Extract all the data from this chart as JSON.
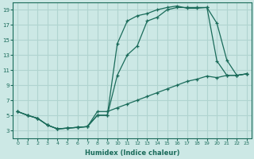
{
  "xlabel": "Humidex (Indice chaleur)",
  "background_color": "#cce8e5",
  "grid_color": "#b0d4d0",
  "line_color": "#1a6b5a",
  "xlim": [
    -0.5,
    23.5
  ],
  "ylim": [
    2,
    20
  ],
  "xticks": [
    0,
    1,
    2,
    3,
    4,
    5,
    6,
    7,
    8,
    9,
    10,
    11,
    12,
    13,
    14,
    15,
    16,
    17,
    18,
    19,
    20,
    21,
    22,
    23
  ],
  "yticks": [
    3,
    5,
    7,
    9,
    11,
    13,
    15,
    17,
    19
  ],
  "line1_x": [
    0,
    1,
    2,
    3,
    4,
    5,
    6,
    7,
    8,
    9,
    10,
    11,
    12,
    13,
    14,
    15,
    16,
    17,
    18,
    19,
    20,
    21,
    22,
    23
  ],
  "line1_y": [
    5.5,
    5.0,
    4.6,
    3.7,
    3.2,
    3.3,
    3.4,
    3.5,
    5.0,
    5.0,
    14.5,
    17.5,
    18.2,
    18.5,
    19.0,
    19.3,
    19.5,
    19.2,
    19.2,
    19.3,
    12.2,
    10.3,
    10.3,
    10.5
  ],
  "line2_x": [
    0,
    1,
    2,
    3,
    4,
    5,
    6,
    7,
    8,
    9,
    10,
    11,
    12,
    13,
    14,
    15,
    16,
    17,
    18,
    19,
    20,
    21,
    22,
    23
  ],
  "line2_y": [
    5.5,
    5.0,
    4.6,
    3.7,
    3.2,
    3.3,
    3.4,
    3.5,
    5.0,
    5.0,
    10.3,
    13.0,
    14.2,
    17.5,
    18.0,
    19.0,
    19.3,
    19.3,
    19.3,
    19.3,
    17.2,
    12.3,
    10.3,
    10.5
  ],
  "line3_x": [
    0,
    1,
    2,
    3,
    4,
    5,
    6,
    7,
    8,
    9,
    10,
    11,
    12,
    13,
    14,
    15,
    16,
    17,
    18,
    19,
    20,
    21,
    22,
    23
  ],
  "line3_y": [
    5.5,
    5.0,
    4.6,
    3.7,
    3.2,
    3.3,
    3.4,
    3.5,
    5.5,
    5.5,
    6.0,
    6.5,
    7.0,
    7.5,
    8.0,
    8.5,
    9.0,
    9.5,
    9.8,
    10.2,
    10.0,
    10.3,
    10.3,
    10.5
  ]
}
